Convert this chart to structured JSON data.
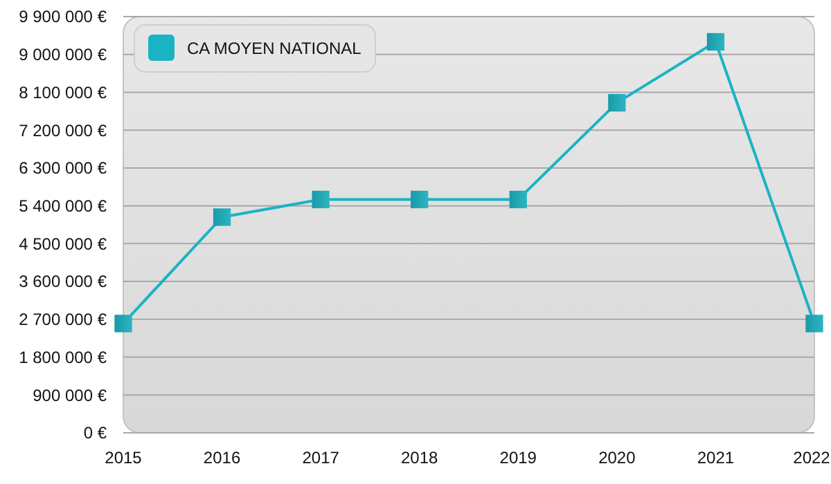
{
  "chart_data": {
    "type": "line",
    "x": [
      2015,
      2016,
      2017,
      2018,
      2019,
      2020,
      2021,
      2022
    ],
    "series": [
      {
        "name": "CA MOYEN NATIONAL",
        "color": "#1ab3c4",
        "values": [
          2600000,
          5130000,
          5550000,
          5550000,
          5550000,
          7850000,
          9300000,
          2600000
        ]
      }
    ],
    "xlim": [
      2015,
      2022
    ],
    "xticks": [
      2015,
      2016,
      2017,
      2018,
      2019,
      2020,
      2021,
      2022
    ],
    "ylim": [
      0,
      9900000
    ],
    "yticks": [
      {
        "value": 0,
        "label": "0 €"
      },
      {
        "value": 900000,
        "label": "900 000 €"
      },
      {
        "value": 1800000,
        "label": "1 800 000 €"
      },
      {
        "value": 2700000,
        "label": "2 700 000 €"
      },
      {
        "value": 3600000,
        "label": "3 600 000 €"
      },
      {
        "value": 4500000,
        "label": "4 500 000 €"
      },
      {
        "value": 5400000,
        "label": "5 400 000 €"
      },
      {
        "value": 6300000,
        "label": "6 300 000 €"
      },
      {
        "value": 7200000,
        "label": "7 200 000 €"
      },
      {
        "value": 8100000,
        "label": "8 100 000 €"
      },
      {
        "value": 9000000,
        "label": "9 000 000 €"
      },
      {
        "value": 9900000,
        "label": "9 900 000 €"
      }
    ],
    "grid": "y",
    "legend": "top left",
    "marker": "square",
    "line_style": "solid"
  }
}
